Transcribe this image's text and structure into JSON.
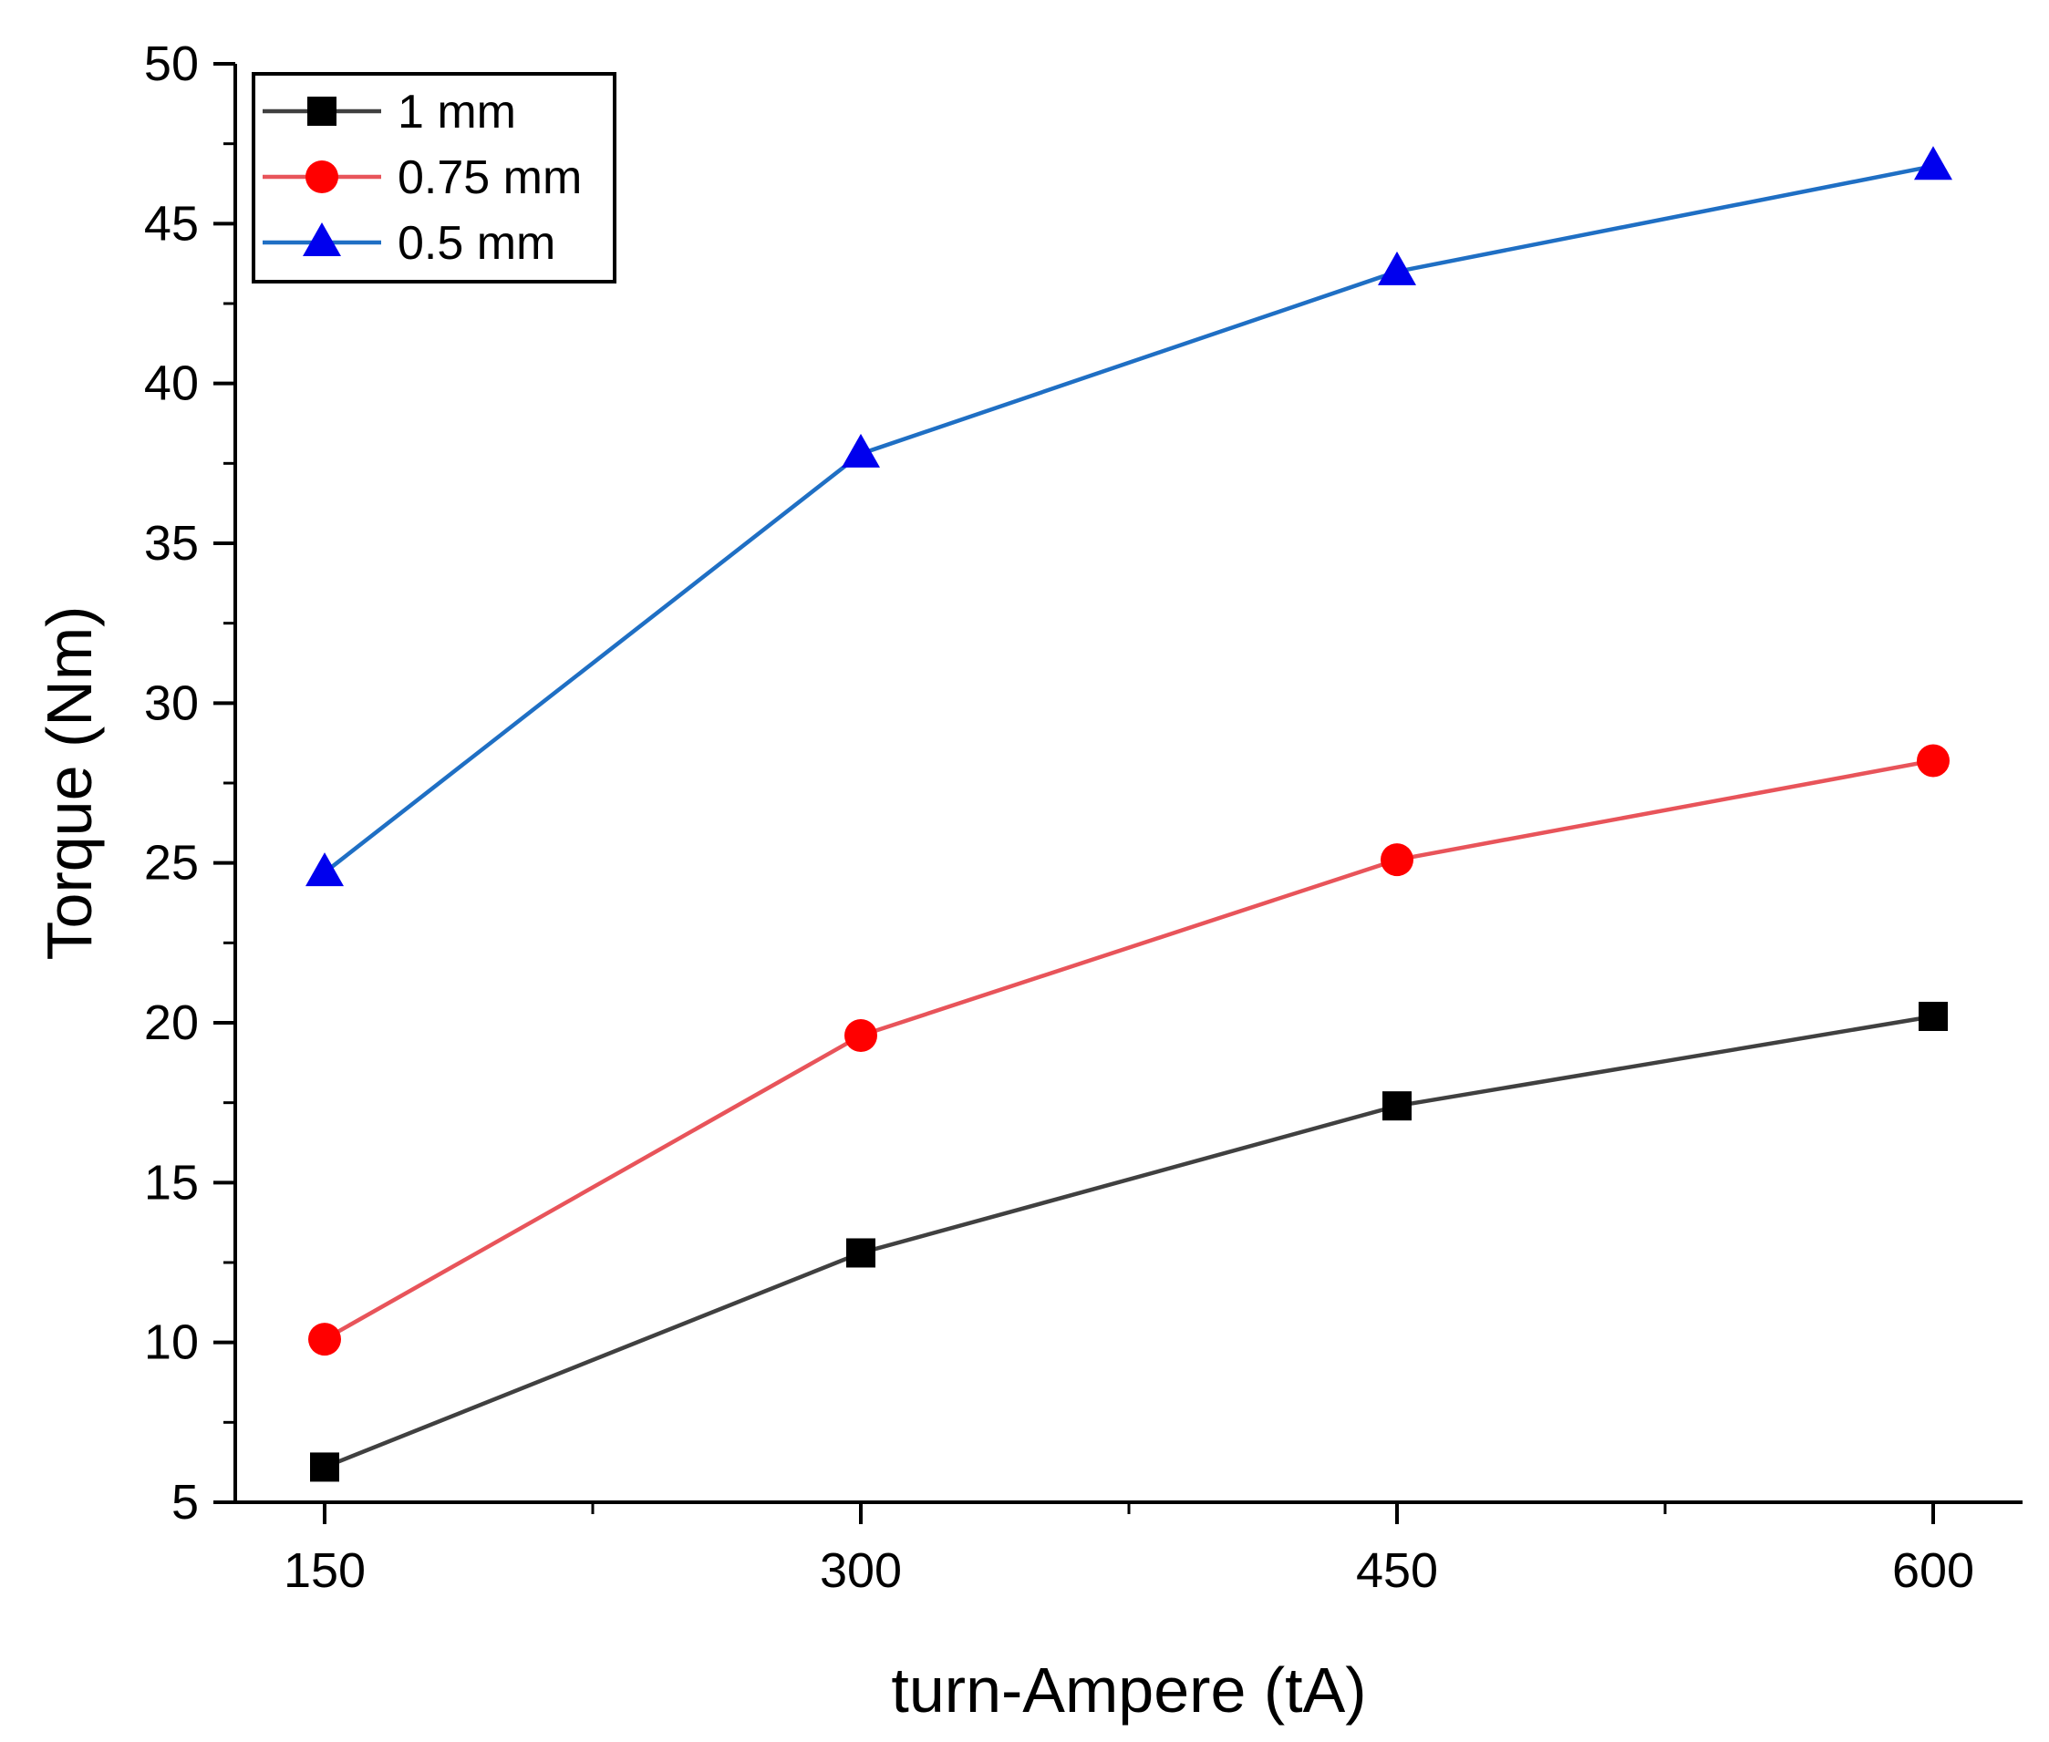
{
  "chart_data": {
    "type": "line",
    "title": "",
    "xlabel": "turn-Ampere (tA)",
    "ylabel": "Torque (Nm)",
    "x": [
      150,
      300,
      450,
      600
    ],
    "xlim": [
      125,
      625
    ],
    "ylim": [
      5,
      50
    ],
    "xticks": [
      150,
      300,
      450,
      600
    ],
    "yticks": [
      5,
      10,
      15,
      20,
      25,
      30,
      35,
      40,
      45,
      50
    ],
    "grid": false,
    "legend_position": "top-left",
    "series": [
      {
        "name": "1 mm",
        "marker": "square",
        "line_color": "#404040",
        "marker_color": "#000000",
        "values": [
          6.1,
          12.8,
          17.4,
          20.2
        ]
      },
      {
        "name": "0.75 mm",
        "marker": "circle",
        "line_color": "#e8545a",
        "marker_color": "#ff0000",
        "values": [
          10.1,
          19.6,
          25.1,
          28.2
        ]
      },
      {
        "name": "0.5 mm",
        "marker": "triangle",
        "line_color": "#1f6fc4",
        "marker_color": "#0000ee",
        "values": [
          24.7,
          37.8,
          43.5,
          46.8
        ]
      }
    ]
  }
}
